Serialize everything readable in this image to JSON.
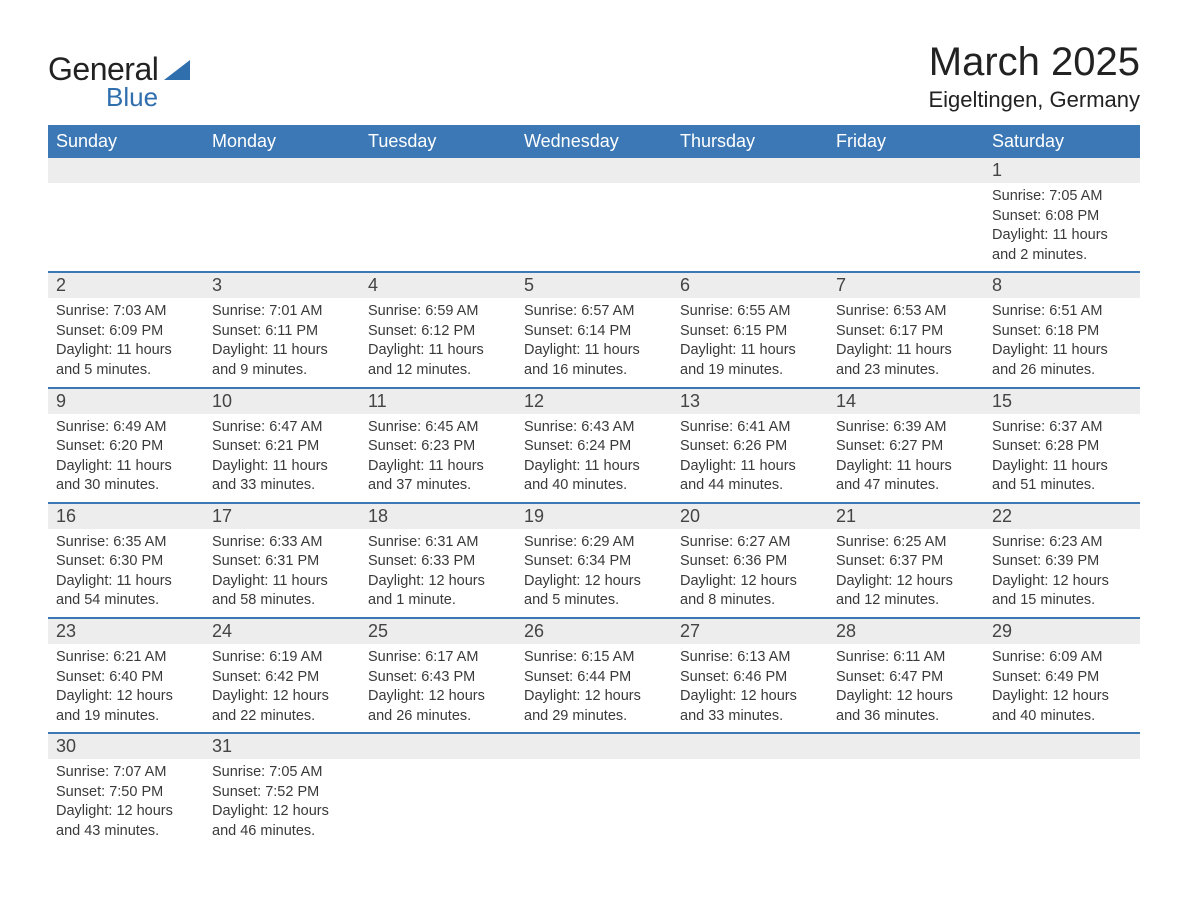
{
  "logo": {
    "general": "General",
    "blue": "Blue",
    "tri_color": "#2f6fad"
  },
  "title": "March 2025",
  "location": "Eigeltingen, Germany",
  "colors": {
    "header_bg": "#3b78b5",
    "header_text": "#ffffff",
    "daynum_bg": "#ededed",
    "row_divider": "#3b78b5",
    "body_text": "#3a3a3a",
    "page_bg": "#ffffff"
  },
  "typography": {
    "title_fontsize": 40,
    "location_fontsize": 22,
    "weekday_fontsize": 18,
    "daynum_fontsize": 18,
    "detail_fontsize": 14.5,
    "font_family": "Arial"
  },
  "layout": {
    "columns": 7,
    "weeks": 6
  },
  "weekdays": [
    "Sunday",
    "Monday",
    "Tuesday",
    "Wednesday",
    "Thursday",
    "Friday",
    "Saturday"
  ],
  "weeks": [
    [
      null,
      null,
      null,
      null,
      null,
      null,
      {
        "day": "1",
        "sunrise": "Sunrise: 7:05 AM",
        "sunset": "Sunset: 6:08 PM",
        "dayl1": "Daylight: 11 hours",
        "dayl2": "and 2 minutes."
      }
    ],
    [
      {
        "day": "2",
        "sunrise": "Sunrise: 7:03 AM",
        "sunset": "Sunset: 6:09 PM",
        "dayl1": "Daylight: 11 hours",
        "dayl2": "and 5 minutes."
      },
      {
        "day": "3",
        "sunrise": "Sunrise: 7:01 AM",
        "sunset": "Sunset: 6:11 PM",
        "dayl1": "Daylight: 11 hours",
        "dayl2": "and 9 minutes."
      },
      {
        "day": "4",
        "sunrise": "Sunrise: 6:59 AM",
        "sunset": "Sunset: 6:12 PM",
        "dayl1": "Daylight: 11 hours",
        "dayl2": "and 12 minutes."
      },
      {
        "day": "5",
        "sunrise": "Sunrise: 6:57 AM",
        "sunset": "Sunset: 6:14 PM",
        "dayl1": "Daylight: 11 hours",
        "dayl2": "and 16 minutes."
      },
      {
        "day": "6",
        "sunrise": "Sunrise: 6:55 AM",
        "sunset": "Sunset: 6:15 PM",
        "dayl1": "Daylight: 11 hours",
        "dayl2": "and 19 minutes."
      },
      {
        "day": "7",
        "sunrise": "Sunrise: 6:53 AM",
        "sunset": "Sunset: 6:17 PM",
        "dayl1": "Daylight: 11 hours",
        "dayl2": "and 23 minutes."
      },
      {
        "day": "8",
        "sunrise": "Sunrise: 6:51 AM",
        "sunset": "Sunset: 6:18 PM",
        "dayl1": "Daylight: 11 hours",
        "dayl2": "and 26 minutes."
      }
    ],
    [
      {
        "day": "9",
        "sunrise": "Sunrise: 6:49 AM",
        "sunset": "Sunset: 6:20 PM",
        "dayl1": "Daylight: 11 hours",
        "dayl2": "and 30 minutes."
      },
      {
        "day": "10",
        "sunrise": "Sunrise: 6:47 AM",
        "sunset": "Sunset: 6:21 PM",
        "dayl1": "Daylight: 11 hours",
        "dayl2": "and 33 minutes."
      },
      {
        "day": "11",
        "sunrise": "Sunrise: 6:45 AM",
        "sunset": "Sunset: 6:23 PM",
        "dayl1": "Daylight: 11 hours",
        "dayl2": "and 37 minutes."
      },
      {
        "day": "12",
        "sunrise": "Sunrise: 6:43 AM",
        "sunset": "Sunset: 6:24 PM",
        "dayl1": "Daylight: 11 hours",
        "dayl2": "and 40 minutes."
      },
      {
        "day": "13",
        "sunrise": "Sunrise: 6:41 AM",
        "sunset": "Sunset: 6:26 PM",
        "dayl1": "Daylight: 11 hours",
        "dayl2": "and 44 minutes."
      },
      {
        "day": "14",
        "sunrise": "Sunrise: 6:39 AM",
        "sunset": "Sunset: 6:27 PM",
        "dayl1": "Daylight: 11 hours",
        "dayl2": "and 47 minutes."
      },
      {
        "day": "15",
        "sunrise": "Sunrise: 6:37 AM",
        "sunset": "Sunset: 6:28 PM",
        "dayl1": "Daylight: 11 hours",
        "dayl2": "and 51 minutes."
      }
    ],
    [
      {
        "day": "16",
        "sunrise": "Sunrise: 6:35 AM",
        "sunset": "Sunset: 6:30 PM",
        "dayl1": "Daylight: 11 hours",
        "dayl2": "and 54 minutes."
      },
      {
        "day": "17",
        "sunrise": "Sunrise: 6:33 AM",
        "sunset": "Sunset: 6:31 PM",
        "dayl1": "Daylight: 11 hours",
        "dayl2": "and 58 minutes."
      },
      {
        "day": "18",
        "sunrise": "Sunrise: 6:31 AM",
        "sunset": "Sunset: 6:33 PM",
        "dayl1": "Daylight: 12 hours",
        "dayl2": "and 1 minute."
      },
      {
        "day": "19",
        "sunrise": "Sunrise: 6:29 AM",
        "sunset": "Sunset: 6:34 PM",
        "dayl1": "Daylight: 12 hours",
        "dayl2": "and 5 minutes."
      },
      {
        "day": "20",
        "sunrise": "Sunrise: 6:27 AM",
        "sunset": "Sunset: 6:36 PM",
        "dayl1": "Daylight: 12 hours",
        "dayl2": "and 8 minutes."
      },
      {
        "day": "21",
        "sunrise": "Sunrise: 6:25 AM",
        "sunset": "Sunset: 6:37 PM",
        "dayl1": "Daylight: 12 hours",
        "dayl2": "and 12 minutes."
      },
      {
        "day": "22",
        "sunrise": "Sunrise: 6:23 AM",
        "sunset": "Sunset: 6:39 PM",
        "dayl1": "Daylight: 12 hours",
        "dayl2": "and 15 minutes."
      }
    ],
    [
      {
        "day": "23",
        "sunrise": "Sunrise: 6:21 AM",
        "sunset": "Sunset: 6:40 PM",
        "dayl1": "Daylight: 12 hours",
        "dayl2": "and 19 minutes."
      },
      {
        "day": "24",
        "sunrise": "Sunrise: 6:19 AM",
        "sunset": "Sunset: 6:42 PM",
        "dayl1": "Daylight: 12 hours",
        "dayl2": "and 22 minutes."
      },
      {
        "day": "25",
        "sunrise": "Sunrise: 6:17 AM",
        "sunset": "Sunset: 6:43 PM",
        "dayl1": "Daylight: 12 hours",
        "dayl2": "and 26 minutes."
      },
      {
        "day": "26",
        "sunrise": "Sunrise: 6:15 AM",
        "sunset": "Sunset: 6:44 PM",
        "dayl1": "Daylight: 12 hours",
        "dayl2": "and 29 minutes."
      },
      {
        "day": "27",
        "sunrise": "Sunrise: 6:13 AM",
        "sunset": "Sunset: 6:46 PM",
        "dayl1": "Daylight: 12 hours",
        "dayl2": "and 33 minutes."
      },
      {
        "day": "28",
        "sunrise": "Sunrise: 6:11 AM",
        "sunset": "Sunset: 6:47 PM",
        "dayl1": "Daylight: 12 hours",
        "dayl2": "and 36 minutes."
      },
      {
        "day": "29",
        "sunrise": "Sunrise: 6:09 AM",
        "sunset": "Sunset: 6:49 PM",
        "dayl1": "Daylight: 12 hours",
        "dayl2": "and 40 minutes."
      }
    ],
    [
      {
        "day": "30",
        "sunrise": "Sunrise: 7:07 AM",
        "sunset": "Sunset: 7:50 PM",
        "dayl1": "Daylight: 12 hours",
        "dayl2": "and 43 minutes."
      },
      {
        "day": "31",
        "sunrise": "Sunrise: 7:05 AM",
        "sunset": "Sunset: 7:52 PM",
        "dayl1": "Daylight: 12 hours",
        "dayl2": "and 46 minutes."
      },
      null,
      null,
      null,
      null,
      null
    ]
  ]
}
